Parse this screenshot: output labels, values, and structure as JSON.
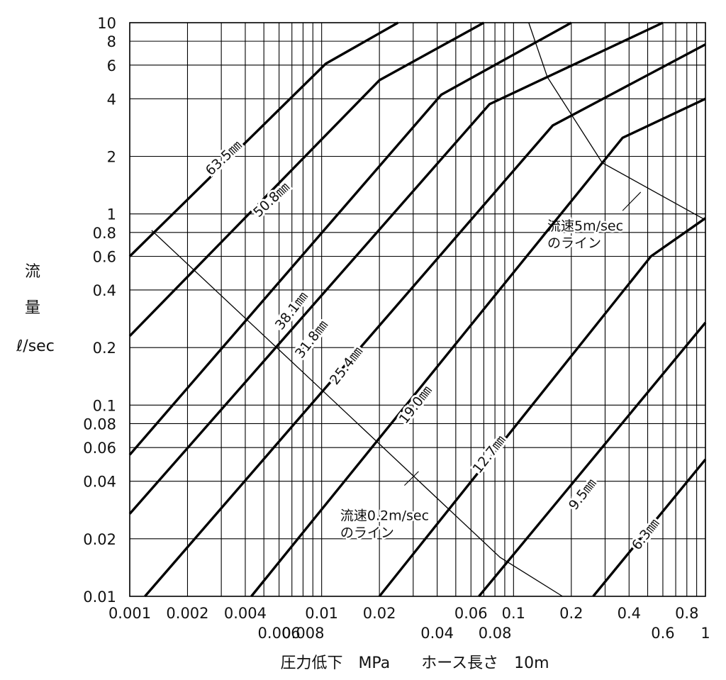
{
  "chart_data": {
    "type": "line",
    "title": "",
    "xlabel": "圧力低下　MPa　　ホース長さ　10m",
    "ylabel_chars": [
      "流",
      "量",
      "ℓ/sec"
    ],
    "x_scale": "log",
    "y_scale": "log",
    "xlim": [
      0.001,
      1
    ],
    "ylim": [
      0.01,
      10
    ],
    "grid": true,
    "x_ticks": [
      {
        "value": 0.001,
        "label": "0.001",
        "row": 1
      },
      {
        "value": 0.002,
        "label": "0.002",
        "row": 1
      },
      {
        "value": 0.004,
        "label": "0.004",
        "row": 1
      },
      {
        "value": 0.006,
        "label": "0.006",
        "row": 2
      },
      {
        "value": 0.008,
        "label": "0.008",
        "row": 2
      },
      {
        "value": 0.01,
        "label": "0.01",
        "row": 1
      },
      {
        "value": 0.02,
        "label": "0.02",
        "row": 1
      },
      {
        "value": 0.04,
        "label": "0.04",
        "row": 2
      },
      {
        "value": 0.06,
        "label": "0.06",
        "row": 1
      },
      {
        "value": 0.08,
        "label": "0.08",
        "row": 2
      },
      {
        "value": 0.1,
        "label": "0.1",
        "row": 1
      },
      {
        "value": 0.2,
        "label": "0.2",
        "row": 1
      },
      {
        "value": 0.4,
        "label": "0.4",
        "row": 1
      },
      {
        "value": 0.6,
        "label": "0.6",
        "row": 2
      },
      {
        "value": 0.8,
        "label": "0.8",
        "row": 1
      },
      {
        "value": 1,
        "label": "1",
        "row": 2
      }
    ],
    "x_grid": [
      0.001,
      0.002,
      0.003,
      0.004,
      0.005,
      0.006,
      0.007,
      0.008,
      0.009,
      0.01,
      0.02,
      0.03,
      0.04,
      0.05,
      0.06,
      0.07,
      0.08,
      0.09,
      0.1,
      0.2,
      0.3,
      0.4,
      0.5,
      0.6,
      0.7,
      0.8,
      0.9,
      1
    ],
    "y_ticks": [
      {
        "value": 10,
        "label": "10"
      },
      {
        "value": 8,
        "label": "8"
      },
      {
        "value": 6,
        "label": "6"
      },
      {
        "value": 4,
        "label": "4"
      },
      {
        "value": 2,
        "label": "2"
      },
      {
        "value": 1,
        "label": "1"
      },
      {
        "value": 0.8,
        "label": "0.8"
      },
      {
        "value": 0.6,
        "label": "0.6"
      },
      {
        "value": 0.4,
        "label": "0.4"
      },
      {
        "value": 0.2,
        "label": "0.2"
      },
      {
        "value": 0.1,
        "label": "0.1"
      },
      {
        "value": 0.08,
        "label": "0.08"
      },
      {
        "value": 0.06,
        "label": "0.06"
      },
      {
        "value": 0.04,
        "label": "0.04"
      },
      {
        "value": 0.02,
        "label": "0.02"
      },
      {
        "value": 0.01,
        "label": "0.01"
      }
    ],
    "series": [
      {
        "name": "63.5㎜",
        "points": [
          [
            0.001,
            0.6
          ],
          [
            0.0105,
            6.1
          ],
          [
            0.025,
            10
          ]
        ],
        "label_at": [
          0.0031,
          1.95
        ],
        "angle": -43
      },
      {
        "name": "50.8㎜",
        "points": [
          [
            0.001,
            0.23
          ],
          [
            0.02,
            5.0
          ],
          [
            0.07,
            10
          ]
        ],
        "label_at": [
          0.0055,
          1.18
        ],
        "angle": -43
      },
      {
        "name": "38.1㎜",
        "points": [
          [
            0.001,
            0.055
          ],
          [
            0.042,
            4.2
          ],
          [
            0.2,
            10
          ]
        ],
        "label_at": [
          0.007,
          0.31
        ],
        "angle": -52
      },
      {
        "name": "31.8㎜",
        "points": [
          [
            0.001,
            0.027
          ],
          [
            0.075,
            3.75
          ],
          [
            0.6,
            10
          ]
        ],
        "label_at": [
          0.0089,
          0.22
        ],
        "angle": -52
      },
      {
        "name": "25.4㎜",
        "points": [
          [
            0.0012,
            0.01
          ],
          [
            0.16,
            2.9
          ],
          [
            1,
            7.7
          ]
        ],
        "label_at": [
          0.0135,
          0.16
        ],
        "angle": -52
      },
      {
        "name": "19.0㎜",
        "points": [
          [
            0.0043,
            0.01
          ],
          [
            0.37,
            2.5
          ],
          [
            1,
            4.0
          ]
        ],
        "label_at": [
          0.031,
          0.1
        ],
        "angle": -52
      },
      {
        "name": "12.7㎜",
        "points": [
          [
            0.02,
            0.01
          ],
          [
            0.52,
            0.6
          ],
          [
            1,
            0.95
          ]
        ],
        "label_at": [
          0.075,
          0.055
        ],
        "angle": -52
      },
      {
        "name": "9.5㎜",
        "points": [
          [
            0.066,
            0.01
          ],
          [
            1,
            0.27
          ]
        ],
        "label_at": [
          0.23,
          0.034
        ],
        "angle": -52
      },
      {
        "name": "6.3㎜",
        "points": [
          [
            0.26,
            0.01
          ],
          [
            1,
            0.052
          ]
        ],
        "label_at": [
          0.49,
          0.021
        ],
        "angle": -52
      }
    ],
    "annotations": [
      {
        "name": "流速5m/secのライン",
        "lines": [
          "流速5m/sec",
          "のライン"
        ],
        "points": [
          [
            0.12,
            10
          ],
          [
            0.15,
            5.2
          ],
          [
            0.29,
            1.85
          ],
          [
            1,
            0.93
          ]
        ],
        "text_at": [
          0.15,
          0.82
        ],
        "leader_from": [
          0.37,
          1.04
        ],
        "leader_to": [
          0.46,
          1.3
        ]
      },
      {
        "name": "流速0.2m/secのライン",
        "lines": [
          "流速0.2m/sec",
          "のライン"
        ],
        "points": [
          [
            0.0013,
            0.82
          ],
          [
            0.011,
            0.11
          ],
          [
            0.085,
            0.016
          ],
          [
            0.18,
            0.01
          ]
        ],
        "text_at": [
          0.0125,
          0.025
        ],
        "leader_from": [
          0.027,
          0.038
        ],
        "leader_to": [
          0.032,
          0.045
        ]
      }
    ]
  }
}
